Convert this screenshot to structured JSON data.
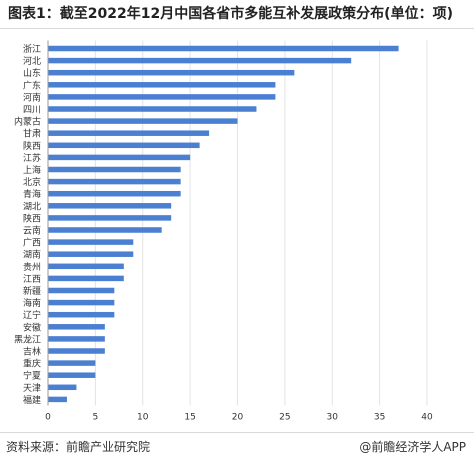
{
  "header": {
    "title": "图表1：截至2022年12月中国各省市多能互补发展政策分布(单位：项)"
  },
  "footer": {
    "source": "资料来源：前瞻产业研究院",
    "brand": "@前瞻经济学人APP"
  },
  "colors": {
    "bar": "#4a7fd1",
    "grid": "#e3e3e3",
    "axis": "#999999",
    "text": "#333333"
  },
  "chart_data": {
    "type": "bar",
    "orientation": "horizontal",
    "categories": [
      "浙江",
      "河北",
      "山东",
      "广东",
      "河南",
      "四川",
      "内蒙古",
      "甘肃",
      "陕西",
      "江苏",
      "上海",
      "北京",
      "青海",
      "湖北",
      "陕西",
      "云南",
      "广西",
      "湖南",
      "贵州",
      "江西",
      "新疆",
      "海南",
      "辽宁",
      "安徽",
      "黑龙江",
      "吉林",
      "重庆",
      "宁夏",
      "天津",
      "福建"
    ],
    "values": [
      37,
      32,
      26,
      24,
      24,
      22,
      20,
      17,
      16,
      15,
      14,
      14,
      14,
      13,
      13,
      12,
      9,
      9,
      8,
      8,
      7,
      7,
      7,
      6,
      6,
      6,
      5,
      5,
      3,
      2
    ],
    "xlim": [
      0,
      40
    ],
    "xticks": [
      "0",
      "5",
      "10",
      "15",
      "20",
      "25",
      "30",
      "35",
      "40"
    ],
    "grid": true
  }
}
